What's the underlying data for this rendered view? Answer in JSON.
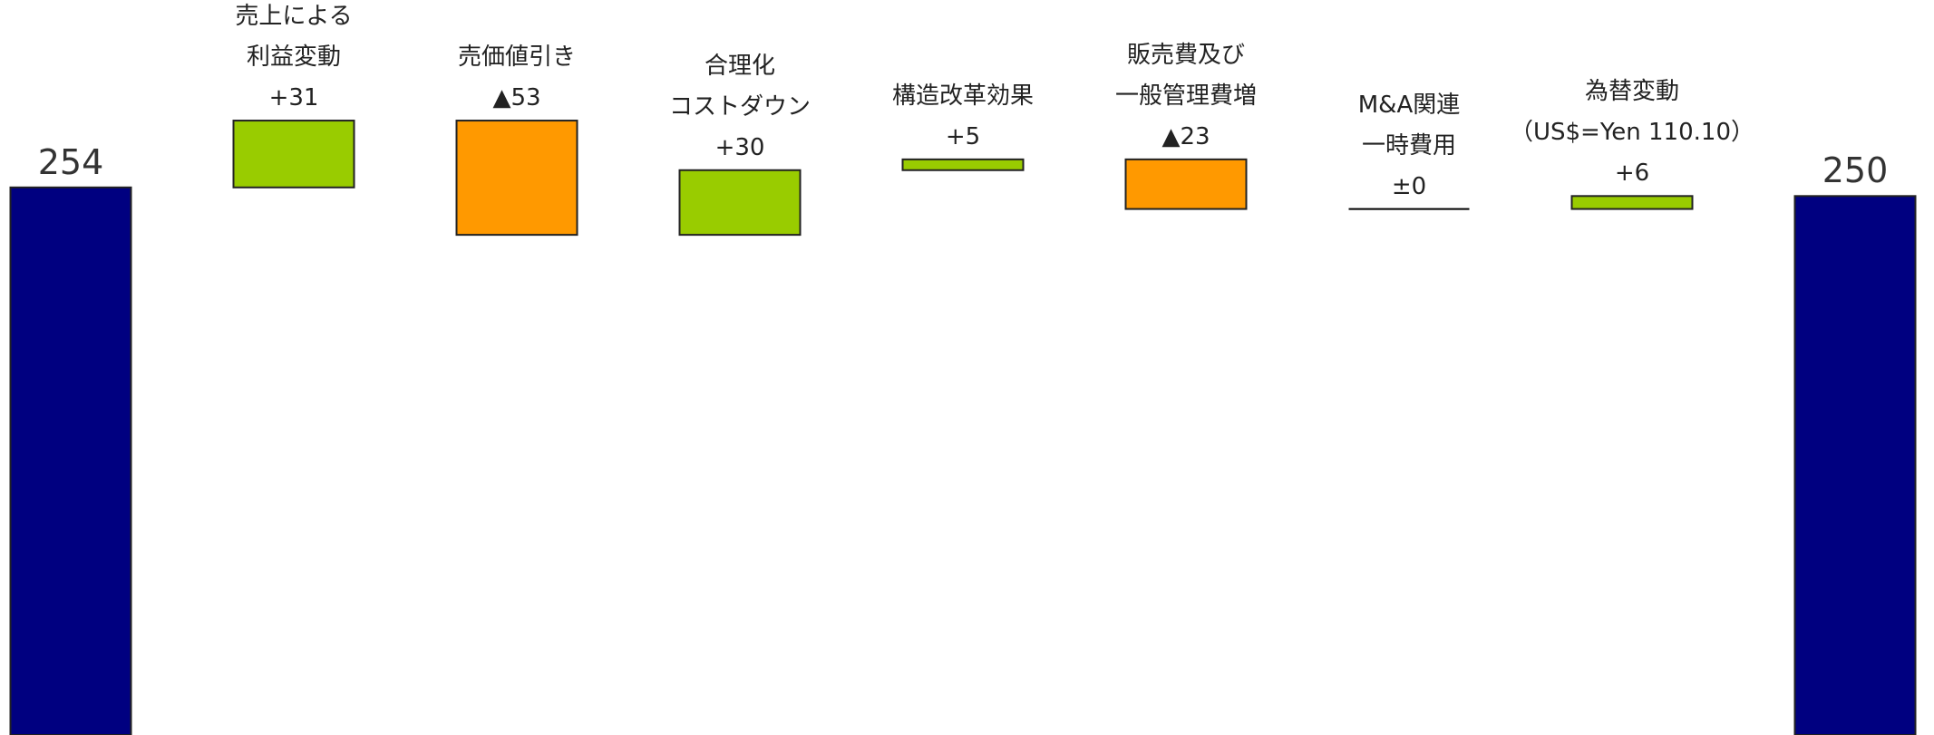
{
  "chart_data": {
    "type": "waterfall",
    "categories": [
      null,
      "売上による\n利益変動",
      "売価値引き",
      "合理化\nコストダウン",
      "構造改革効果",
      "販売費及び\n一般管理費増",
      "M&A関連\n一時費用",
      "為替変動\n（US$=Yen 110.10）",
      null
    ],
    "values": [
      254,
      31,
      -53,
      30,
      5,
      -23,
      0,
      6,
      250
    ],
    "value_labels": [
      "254",
      "+31",
      "▲53",
      "+30",
      "+5",
      "▲23",
      "±0",
      "+6",
      "250"
    ],
    "colors": {
      "total": "#000080",
      "increase": "#99cc00",
      "decrease": "#ff9900"
    },
    "ylim": [
      0,
      330
    ]
  }
}
